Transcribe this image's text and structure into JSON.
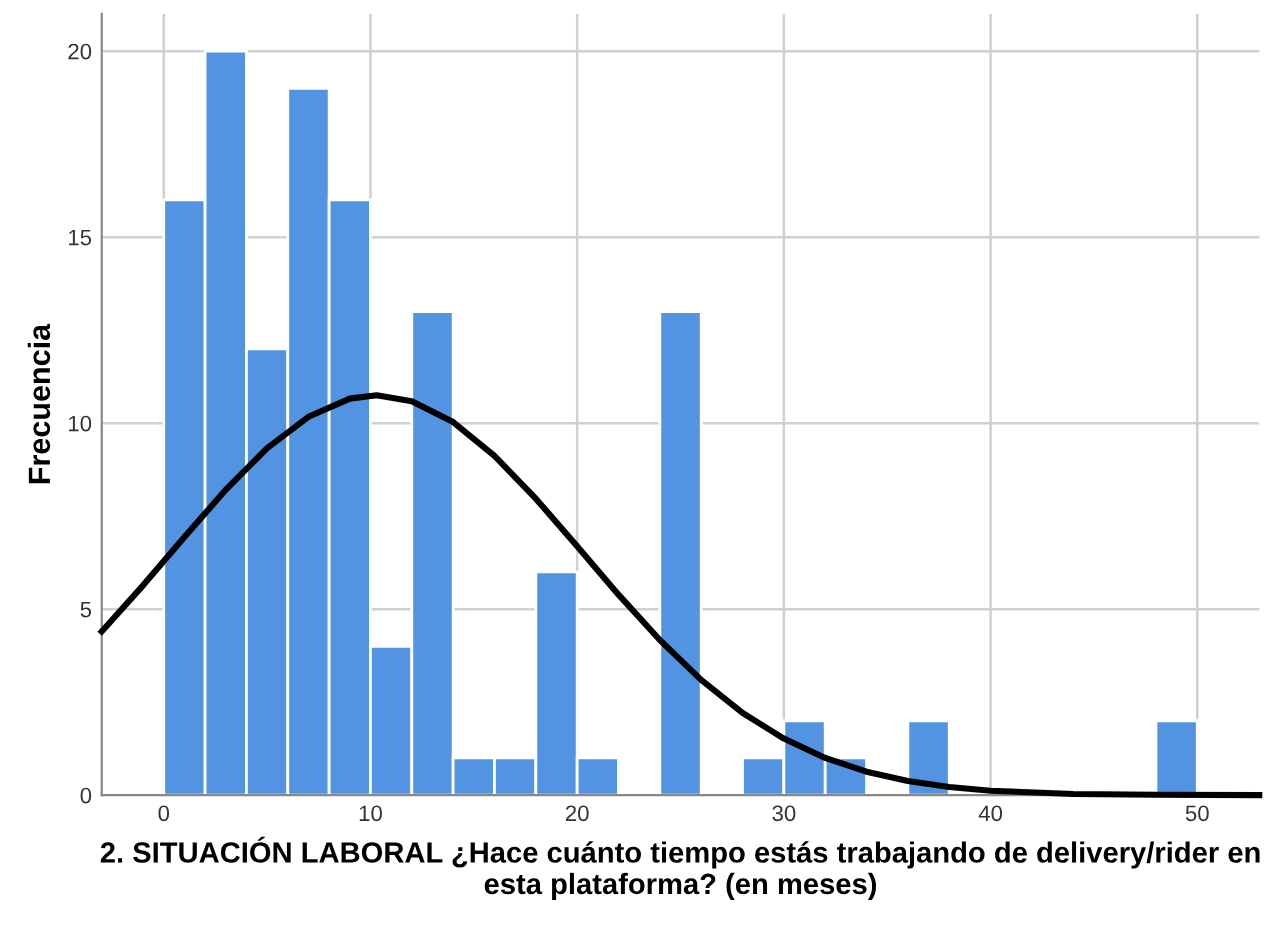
{
  "chart_data": {
    "type": "histogram",
    "xlabel": "2. SITUACIÓN LABORAL ¿Hace cuánto tiempo estás trabajando de delivery/rider en esta plataforma? (en meses)",
    "ylabel": "Frecuencia",
    "series": [
      {
        "color": "#5294e2",
        "bins": [
          0,
          2,
          4,
          6,
          8,
          10,
          12,
          14,
          16,
          18,
          20,
          22,
          24,
          26,
          28,
          30,
          32,
          34,
          36,
          38,
          40,
          42,
          44,
          46,
          48,
          50
        ],
        "values": [
          16,
          20,
          12,
          19,
          16,
          4,
          13,
          1,
          1,
          6,
          1,
          0,
          13,
          0,
          1,
          2,
          1,
          0,
          2,
          0,
          0,
          0,
          0,
          0,
          2
        ]
      },
      {
        "type": "line",
        "color": "#000000",
        "x": [
          -3,
          -1,
          1,
          3,
          5,
          7,
          9,
          10.3,
          12,
          14,
          16,
          18,
          20,
          22,
          24,
          26,
          28,
          30,
          32,
          34,
          36,
          38,
          40,
          44,
          48,
          53
        ],
        "values": [
          4.4,
          5.64,
          6.94,
          8.21,
          9.33,
          10.17,
          10.66,
          10.75,
          10.59,
          10.03,
          9.12,
          7.97,
          6.69,
          5.39,
          4.17,
          3.1,
          2.21,
          1.52,
          1.0,
          0.63,
          0.38,
          0.22,
          0.12,
          0.03,
          0.01,
          0
        ]
      }
    ],
    "xlim": [
      -3,
      53
    ],
    "xticks": [
      0,
      10,
      20,
      30,
      40,
      50
    ],
    "ylim": [
      0,
      21
    ],
    "yticks": [
      0,
      5,
      10,
      15,
      20
    ],
    "grid": true,
    "line_style": "solid"
  }
}
